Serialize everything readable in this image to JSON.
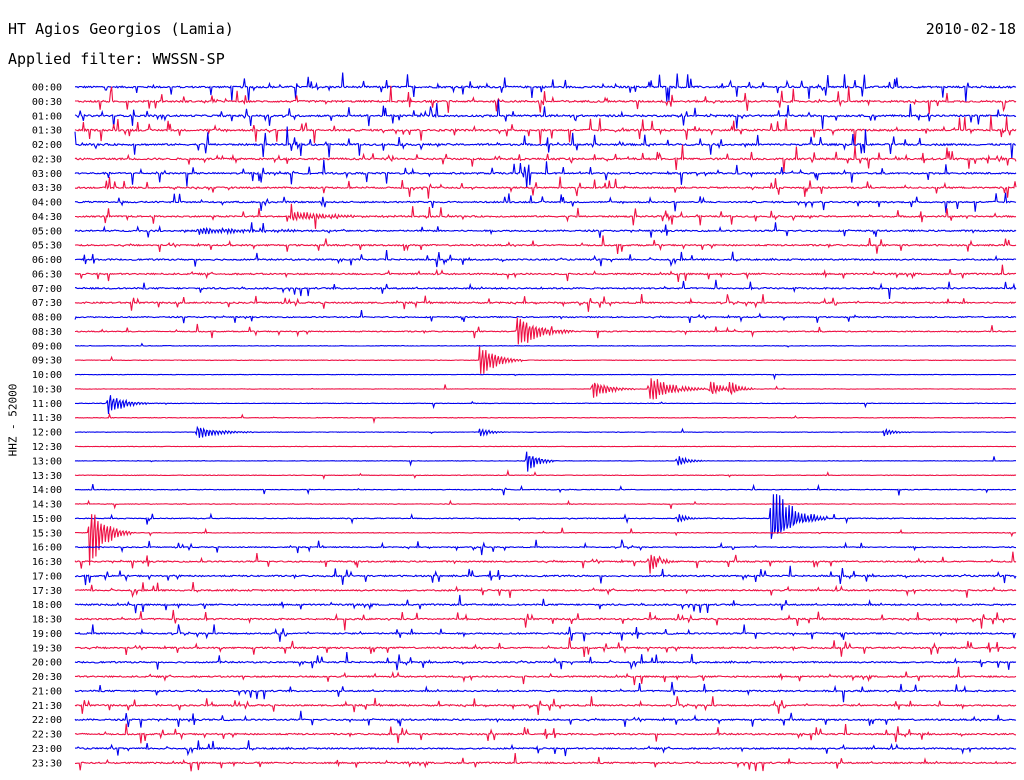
{
  "header": {
    "station": "HT Agios Georgios (Lamia)",
    "date": "2010-02-18",
    "filter": "Applied filter: WWSSN-SP",
    "channel": "HHZ - 52000"
  },
  "chart_data": {
    "type": "line",
    "title": "HT Agios Georgios (Lamia)",
    "subtitle": "Applied filter: WWSSN-SP",
    "ylabel": "HHZ - 52000",
    "xlabel": "",
    "series_colors": [
      "#0000ee",
      "#ee1144"
    ],
    "rows": [
      {
        "label": "00:00",
        "noise": 0.55,
        "spikes": 1.0,
        "events": []
      },
      {
        "label": "00:30",
        "noise": 0.55,
        "spikes": 1.0,
        "events": []
      },
      {
        "label": "01:00",
        "noise": 0.55,
        "spikes": 1.0,
        "events": []
      },
      {
        "label": "01:30",
        "noise": 0.55,
        "spikes": 1.0,
        "events": []
      },
      {
        "label": "02:00",
        "noise": 0.55,
        "spikes": 1.0,
        "events": []
      },
      {
        "label": "02:30",
        "noise": 0.55,
        "spikes": 0.9,
        "events": []
      },
      {
        "label": "03:00",
        "noise": 0.5,
        "spikes": 0.8,
        "events": []
      },
      {
        "label": "03:30",
        "noise": 0.45,
        "spikes": 0.7,
        "events": []
      },
      {
        "label": "04:00",
        "noise": 0.45,
        "spikes": 0.7,
        "events": []
      },
      {
        "label": "04:30",
        "noise": 0.45,
        "spikes": 0.6,
        "events": [
          {
            "t": 0.23,
            "amp": 6,
            "dur": 0.04
          }
        ]
      },
      {
        "label": "05:00",
        "noise": 0.45,
        "spikes": 0.5,
        "events": [
          {
            "t": 0.13,
            "amp": 4,
            "dur": 0.06
          }
        ]
      },
      {
        "label": "05:30",
        "noise": 0.45,
        "spikes": 0.5,
        "events": []
      },
      {
        "label": "06:00",
        "noise": 0.45,
        "spikes": 0.5,
        "events": []
      },
      {
        "label": "06:30",
        "noise": 0.45,
        "spikes": 0.5,
        "events": []
      },
      {
        "label": "07:00",
        "noise": 0.45,
        "spikes": 0.5,
        "events": []
      },
      {
        "label": "07:30",
        "noise": 0.45,
        "spikes": 0.5,
        "events": []
      },
      {
        "label": "08:00",
        "noise": 0.35,
        "spikes": 0.35,
        "events": []
      },
      {
        "label": "08:30",
        "noise": 0.3,
        "spikes": 0.3,
        "events": [
          {
            "t": 0.47,
            "amp": 22,
            "dur": 0.02
          }
        ]
      },
      {
        "label": "09:00",
        "noise": 0.15,
        "spikes": 0.05,
        "events": []
      },
      {
        "label": "09:30",
        "noise": 0.15,
        "spikes": 0.05,
        "events": [
          {
            "t": 0.43,
            "amp": 22,
            "dur": 0.015
          }
        ]
      },
      {
        "label": "10:00",
        "noise": 0.15,
        "spikes": 0.05,
        "events": []
      },
      {
        "label": "10:30",
        "noise": 0.15,
        "spikes": 0.05,
        "events": [
          {
            "t": 0.55,
            "amp": 12,
            "dur": 0.015
          },
          {
            "t": 0.61,
            "amp": 18,
            "dur": 0.02
          },
          {
            "t": 0.675,
            "amp": 12,
            "dur": 0.01
          },
          {
            "t": 0.695,
            "amp": 10,
            "dur": 0.01
          }
        ]
      },
      {
        "label": "11:00",
        "noise": 0.15,
        "spikes": 0.05,
        "events": [
          {
            "t": 0.035,
            "amp": 14,
            "dur": 0.015
          }
        ]
      },
      {
        "label": "11:30",
        "noise": 0.15,
        "spikes": 0.05,
        "events": []
      },
      {
        "label": "12:00",
        "noise": 0.15,
        "spikes": 0.05,
        "events": [
          {
            "t": 0.13,
            "amp": 8,
            "dur": 0.02
          },
          {
            "t": 0.43,
            "amp": 6,
            "dur": 0.01
          },
          {
            "t": 0.86,
            "amp": 5,
            "dur": 0.01
          }
        ]
      },
      {
        "label": "12:30",
        "noise": 0.15,
        "spikes": 0.05,
        "events": []
      },
      {
        "label": "13:00",
        "noise": 0.15,
        "spikes": 0.05,
        "events": [
          {
            "t": 0.48,
            "amp": 16,
            "dur": 0.01
          },
          {
            "t": 0.64,
            "amp": 7,
            "dur": 0.01
          }
        ]
      },
      {
        "label": "13:30",
        "noise": 0.15,
        "spikes": 0.05,
        "events": []
      },
      {
        "label": "14:00",
        "noise": 0.2,
        "spikes": 0.2,
        "events": []
      },
      {
        "label": "14:30",
        "noise": 0.2,
        "spikes": 0.2,
        "events": []
      },
      {
        "label": "15:00",
        "noise": 0.25,
        "spikes": 0.3,
        "events": [
          {
            "t": 0.74,
            "amp": 40,
            "dur": 0.02
          },
          {
            "t": 0.64,
            "amp": 6,
            "dur": 0.01
          }
        ]
      },
      {
        "label": "15:30",
        "noise": 0.2,
        "spikes": 0.2,
        "events": [
          {
            "t": 0.015,
            "amp": 42,
            "dur": 0.015
          }
        ]
      },
      {
        "label": "16:00",
        "noise": 0.3,
        "spikes": 0.4,
        "events": []
      },
      {
        "label": "16:30",
        "noise": 0.4,
        "spikes": 0.5,
        "events": [
          {
            "t": 0.61,
            "amp": 16,
            "dur": 0.01
          }
        ]
      },
      {
        "label": "17:00",
        "noise": 0.45,
        "spikes": 0.55,
        "events": []
      },
      {
        "label": "17:30",
        "noise": 0.45,
        "spikes": 0.55,
        "events": []
      },
      {
        "label": "18:00",
        "noise": 0.45,
        "spikes": 0.55,
        "events": []
      },
      {
        "label": "18:30",
        "noise": 0.45,
        "spikes": 0.55,
        "events": []
      },
      {
        "label": "19:00",
        "noise": 0.45,
        "spikes": 0.55,
        "events": []
      },
      {
        "label": "19:30",
        "noise": 0.45,
        "spikes": 0.55,
        "events": []
      },
      {
        "label": "20:00",
        "noise": 0.45,
        "spikes": 0.55,
        "events": []
      },
      {
        "label": "20:30",
        "noise": 0.45,
        "spikes": 0.55,
        "events": []
      },
      {
        "label": "21:00",
        "noise": 0.45,
        "spikes": 0.55,
        "events": []
      },
      {
        "label": "21:30",
        "noise": 0.45,
        "spikes": 0.55,
        "events": []
      },
      {
        "label": "22:00",
        "noise": 0.45,
        "spikes": 0.55,
        "events": []
      },
      {
        "label": "22:30",
        "noise": 0.45,
        "spikes": 0.55,
        "events": []
      },
      {
        "label": "23:00",
        "noise": 0.45,
        "spikes": 0.55,
        "events": []
      },
      {
        "label": "23:30",
        "noise": 0.45,
        "spikes": 0.55,
        "events": []
      }
    ]
  }
}
